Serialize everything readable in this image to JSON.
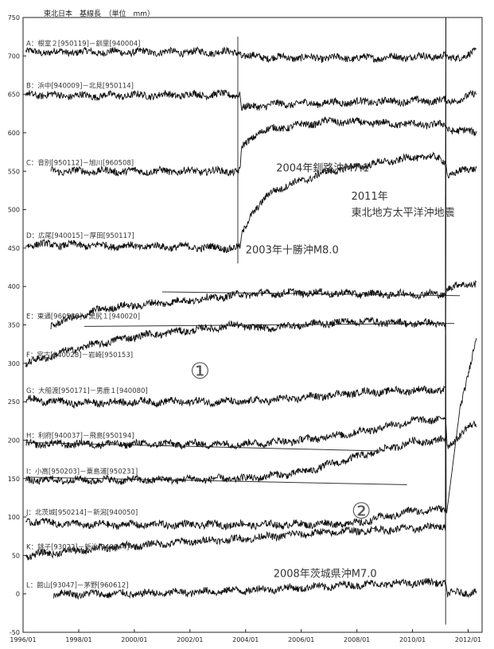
{
  "chart_data": {
    "type": "line",
    "title": "東北日本　基線長　（単位　mm）",
    "xlim": [
      1996.0,
      2012.5
    ],
    "ylim": [
      -50,
      750
    ],
    "x_ticks": [
      "1996/01",
      "1998/01",
      "2000/01",
      "2002/01",
      "2004/01",
      "2006/01",
      "2008/01",
      "2010/01",
      "2012/01"
    ],
    "y_ticks": [
      750,
      700,
      650,
      600,
      550,
      500,
      450,
      400,
      350,
      300,
      250,
      200,
      150,
      100,
      50,
      0,
      -50
    ],
    "series": [
      {
        "name": "A：根室２[950119]－釧里[940004]",
        "start": 1996.1,
        "knots": [
          [
            1996.1,
            705
          ],
          [
            2001,
            705
          ],
          [
            2003.8,
            705
          ],
          [
            2003.85,
            700
          ],
          [
            2005,
            698
          ],
          [
            2008,
            697
          ],
          [
            2011.19,
            700
          ],
          [
            2011.25,
            695
          ],
          [
            2012.3,
            705
          ]
        ]
      },
      {
        "name": "B：浜中[940009]－北見[950114]",
        "start": 1996.1,
        "knots": [
          [
            1996.1,
            650
          ],
          [
            1998,
            648
          ],
          [
            2003.8,
            650
          ],
          [
            2003.85,
            632
          ],
          [
            2005,
            637
          ],
          [
            2008,
            640
          ],
          [
            2011.19,
            642
          ],
          [
            2011.25,
            640
          ],
          [
            2012.3,
            650
          ]
        ]
      },
      {
        "name": "C：音別[950112]－旭川[960508]",
        "start": 1997.0,
        "knots": [
          [
            1997,
            550
          ],
          [
            2003.8,
            550
          ],
          [
            2003.85,
            580
          ],
          [
            2004.5,
            602
          ],
          [
            2005,
            605
          ],
          [
            2007,
            615
          ],
          [
            2009,
            612
          ],
          [
            2011.19,
            610
          ],
          [
            2011.25,
            605
          ],
          [
            2012.3,
            600
          ]
        ]
      },
      {
        "name": "D：広尾[940015]－厚田[950117]",
        "start": 1996.1,
        "knots": [
          [
            1996.1,
            455
          ],
          [
            2003.8,
            450
          ],
          [
            2003.85,
            465
          ],
          [
            2004.2,
            495
          ],
          [
            2005,
            525
          ],
          [
            2007,
            550
          ],
          [
            2009,
            562
          ],
          [
            2010.5,
            570
          ],
          [
            2011.19,
            563
          ],
          [
            2011.25,
            545
          ],
          [
            2012.3,
            555
          ]
        ]
      },
      {
        "name": "E：東通[960588]－黒尻１[940020]",
        "start": 1997.0,
        "knots": [
          [
            1997,
            350
          ],
          [
            1999,
            372
          ],
          [
            2002,
            382
          ],
          [
            2004,
            390
          ],
          [
            2006,
            392
          ],
          [
            2009,
            390
          ],
          [
            2011.19,
            390
          ],
          [
            2011.25,
            398
          ],
          [
            2012.3,
            405
          ]
        ]
      },
      {
        "name": "F：宮古[940028]－岩崎[950153]",
        "start": 1996.1,
        "knots": [
          [
            1996.1,
            300
          ],
          [
            1998,
            320
          ],
          [
            2000,
            335
          ],
          [
            2003.8,
            350
          ],
          [
            2004.5,
            345
          ],
          [
            2006,
            350
          ],
          [
            2008,
            355
          ],
          [
            2010,
            352
          ],
          [
            2011.19,
            352
          ],
          [
            2011.21,
            100
          ],
          [
            2011.7,
            240
          ],
          [
            2012.3,
            335
          ]
        ]
      },
      {
        "name": "G：大船渡[950171]－男鹿１[940080]",
        "start": 1996.1,
        "knots": [
          [
            1996.1,
            253
          ],
          [
            1998,
            248
          ],
          [
            2000,
            250
          ],
          [
            2004,
            250
          ],
          [
            2006,
            255
          ],
          [
            2008,
            262
          ],
          [
            2010,
            265
          ],
          [
            2011.19,
            265
          ],
          [
            2011.2,
            800
          ]
        ]
      },
      {
        "name": "H：利府[940037]－飛島[950194]",
        "start": 1996.1,
        "knots": [
          [
            1996.1,
            195
          ],
          [
            2000,
            195
          ],
          [
            2004,
            195
          ],
          [
            2006,
            200
          ],
          [
            2008,
            210
          ],
          [
            2010,
            225
          ],
          [
            2011.19,
            228
          ],
          [
            2011.25,
            190
          ],
          [
            2011.9,
            215
          ],
          [
            2012.3,
            220
          ]
        ]
      },
      {
        "name": "I：小高[950203]－粟島浦[950231]",
        "start": 1996.1,
        "knots": [
          [
            1996.1,
            148
          ],
          [
            2000,
            148
          ],
          [
            2004,
            150
          ],
          [
            2006,
            158
          ],
          [
            2008,
            178
          ],
          [
            2010,
            198
          ],
          [
            2011.19,
            200
          ],
          [
            2011.2,
            800
          ]
        ]
      },
      {
        "name": "J：北茨城[950214]－新潟[940050]",
        "start": 1996.1,
        "knots": [
          [
            1996.1,
            95
          ],
          [
            1998,
            90
          ],
          [
            2002,
            90
          ],
          [
            2005,
            90
          ],
          [
            2008,
            92
          ],
          [
            2010,
            108
          ],
          [
            2011.19,
            110
          ],
          [
            2011.2,
            800
          ]
        ]
      },
      {
        "name": "K：銚子[93022]－新治[940044]",
        "start": 1996.1,
        "knots": [
          [
            1996.1,
            50
          ],
          [
            1999,
            60
          ],
          [
            2002,
            68
          ],
          [
            2004,
            72
          ],
          [
            2006,
            78
          ],
          [
            2008,
            82
          ],
          [
            2010,
            85
          ],
          [
            2011.19,
            88
          ],
          [
            2011.2,
            800
          ]
        ]
      },
      {
        "name": "L：館山[93047]－茅野[960612]",
        "start": 1997.1,
        "knots": [
          [
            1997.1,
            0
          ],
          [
            2000,
            0
          ],
          [
            2002,
            2
          ],
          [
            2004,
            5
          ],
          [
            2006,
            8
          ],
          [
            2008,
            12
          ],
          [
            2010,
            14
          ],
          [
            2011.19,
            15
          ],
          [
            2011.25,
            0
          ],
          [
            2012.3,
            3
          ]
        ]
      }
    ],
    "trend_lines": [
      {
        "x": [
          2001.0,
          2011.7
        ],
        "y": [
          393,
          388
        ]
      },
      {
        "x": [
          1998.2,
          2011.5
        ],
        "y": [
          348,
          352
        ]
      },
      {
        "x": [
          1996.1,
          2008.8
        ],
        "y": [
          197,
          186
        ]
      },
      {
        "x": [
          1996.1,
          2009.8
        ],
        "y": [
          152,
          142
        ]
      }
    ],
    "event_lines": [
      {
        "x": 2003.72,
        "y": [
          430,
          725
        ]
      },
      {
        "x": 2011.19,
        "y": [
          -40,
          520
        ]
      }
    ],
    "annotations": [
      {
        "text": "2004年釧路沖M7.1",
        "x": 2005.1,
        "y": 550,
        "cls": "ann"
      },
      {
        "text": "2011年",
        "x": 2007.8,
        "y": 513,
        "cls": "ann"
      },
      {
        "text": "東北地方太平洋沖地震",
        "x": 2007.8,
        "y": 492,
        "cls": "ann"
      },
      {
        "text": "2003年十勝沖M8.0",
        "x": 2004.0,
        "y": 443,
        "cls": "ann"
      },
      {
        "text": "①",
        "x": 2002.0,
        "y": 280,
        "cls": "circ"
      },
      {
        "text": "②",
        "x": 2007.8,
        "y": 98,
        "cls": "circ"
      },
      {
        "text": "2008年茨城県沖M7.0",
        "x": 2005.0,
        "y": 22,
        "cls": "ann"
      }
    ]
  }
}
